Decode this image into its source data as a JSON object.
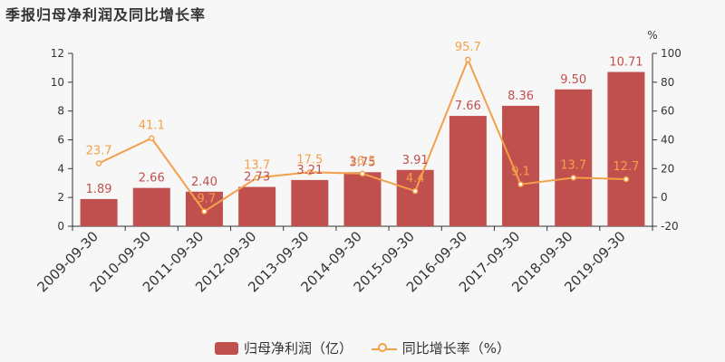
{
  "chart_data": {
    "type": "bar",
    "title": "季报归母净利润及同比增长率",
    "categories": [
      "2009-09-30",
      "2010-09-30",
      "2011-09-30",
      "2012-09-30",
      "2013-09-30",
      "2014-09-30",
      "2015-09-30",
      "2016-09-30",
      "2017-09-30",
      "2018-09-30",
      "2019-09-30"
    ],
    "series": [
      {
        "name": "归母净利润（亿）",
        "type": "bar",
        "axis": "left",
        "color": "#c0504d",
        "values": [
          1.89,
          2.66,
          2.4,
          2.73,
          3.21,
          3.75,
          3.91,
          7.66,
          8.36,
          9.5,
          10.71
        ],
        "labels": [
          "1.89",
          "2.66",
          "2.40",
          "2.73",
          "3.21",
          "3.75",
          "3.91",
          "7.66",
          "8.36",
          "9.50",
          "10.71"
        ]
      },
      {
        "name": "同比增长率（%）",
        "type": "line",
        "axis": "right",
        "color": "#f4a04a",
        "values": [
          23.7,
          41.1,
          -9.7,
          13.7,
          17.5,
          16.5,
          4.4,
          95.7,
          9.1,
          13.7,
          12.7
        ],
        "labels": [
          "23.7",
          "41.1",
          "-9.7",
          "13.7",
          "17.5",
          "16.5",
          "4.4",
          "95.7",
          "9.1",
          "13.7",
          "12.7"
        ]
      }
    ],
    "y_left": {
      "min": 0,
      "max": 12,
      "ticks": [
        "0",
        "2",
        "4",
        "6",
        "8",
        "10",
        "12"
      ]
    },
    "y_right": {
      "min": -20,
      "max": 100,
      "unit": "%",
      "ticks": [
        "-20",
        "0",
        "20",
        "40",
        "60",
        "80",
        "100"
      ]
    },
    "grid": false,
    "legend_position": "bottom"
  }
}
